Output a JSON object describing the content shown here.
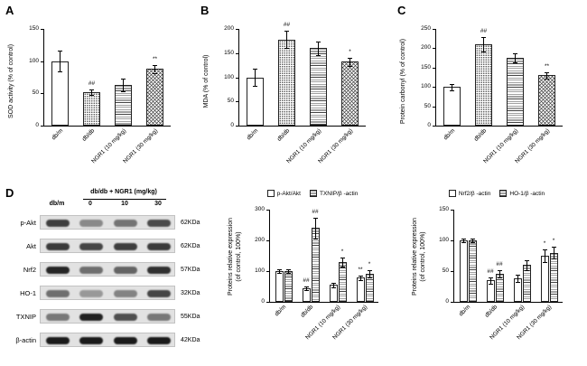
{
  "figure": {
    "panels": {
      "a": "A",
      "b": "B",
      "c": "C",
      "d": "D"
    }
  },
  "blot": {
    "header": {
      "control": "db/m",
      "treatment": "db/db + NGR1 (mg/kg)",
      "doses": [
        "0",
        "10",
        "30"
      ]
    },
    "rows": [
      {
        "label": "p-Akt",
        "kda": "62KDa",
        "bands": [
          0.78,
          0.42,
          0.52,
          0.72
        ]
      },
      {
        "label": "Akt",
        "kda": "62KDa",
        "bands": [
          0.8,
          0.75,
          0.78,
          0.8
        ]
      },
      {
        "label": "Nrf2",
        "kda": "57KDa",
        "bands": [
          0.9,
          0.55,
          0.6,
          0.85
        ]
      },
      {
        "label": "HO-1",
        "kda": "32KDa",
        "bands": [
          0.55,
          0.35,
          0.45,
          0.75
        ]
      },
      {
        "label": "TXNIP",
        "kda": "55KDa",
        "bands": [
          0.5,
          0.92,
          0.7,
          0.5
        ]
      },
      {
        "label": "β-actin",
        "kda": "42KDa",
        "bands": [
          0.95,
          0.95,
          0.95,
          0.95
        ]
      }
    ]
  },
  "chart_data": [
    {
      "id": "A",
      "type": "bar",
      "ylabel": "SOD activity (% of control)",
      "ylim": [
        0,
        150
      ],
      "yticks": [
        0,
        50,
        100,
        150
      ],
      "categories": [
        "db/m",
        "db/db",
        "NGR1 (10 mg/kg)",
        "NGR1 (30 mg/kg)"
      ],
      "patterns": [
        "solid",
        "dots",
        "hlines",
        "cross"
      ],
      "series": [
        {
          "name": "SOD activity",
          "values": [
            100,
            52,
            63,
            88
          ],
          "errors": [
            16,
            4,
            10,
            6
          ],
          "annotations": [
            "",
            "##",
            "",
            "**"
          ]
        }
      ]
    },
    {
      "id": "B",
      "type": "bar",
      "ylabel": "MDA (% of control)",
      "ylim": [
        0,
        200
      ],
      "yticks": [
        0,
        50,
        100,
        150,
        200
      ],
      "categories": [
        "db/m",
        "db/db",
        "NGR1 (10 mg/kg)",
        "NGR1 (30 mg/kg)"
      ],
      "patterns": [
        "solid",
        "dots",
        "hlines",
        "cross"
      ],
      "series": [
        {
          "name": "MDA",
          "values": [
            100,
            178,
            160,
            132
          ],
          "errors": [
            18,
            18,
            14,
            8
          ],
          "annotations": [
            "",
            "##",
            "",
            "*"
          ]
        }
      ]
    },
    {
      "id": "C",
      "type": "bar",
      "ylabel": "Protein carbonyl (% of control)",
      "ylim": [
        0,
        250
      ],
      "yticks": [
        0,
        50,
        100,
        150,
        200,
        250
      ],
      "categories": [
        "db/m",
        "db/db",
        "NGR1 (10 mg/kg)",
        "NGR1 (30 mg/kg)"
      ],
      "patterns": [
        "solid",
        "dots",
        "hlines",
        "cross"
      ],
      "series": [
        {
          "name": "Protein carbonyl",
          "values": [
            100,
            210,
            175,
            130
          ],
          "errors": [
            8,
            18,
            12,
            8
          ],
          "annotations": [
            "",
            "##",
            "",
            "**"
          ]
        }
      ]
    },
    {
      "id": "D-left",
      "type": "bar",
      "ylabel": "Proteins relative expression\n(of control, 100%)",
      "ylim": [
        0,
        300
      ],
      "yticks": [
        0,
        100,
        200,
        300
      ],
      "categories": [
        "db/m",
        "db/db",
        "NGR1 (10 mg/kg)",
        "NGR1 (30 mg/kg)"
      ],
      "series": [
        {
          "name": "p-Akt/Akt",
          "pattern": "solid",
          "values": [
            100,
            45,
            55,
            78
          ],
          "errors": [
            5,
            6,
            8,
            8
          ],
          "annotations": [
            "",
            "##",
            "",
            "**"
          ]
        },
        {
          "name": "TXNIP/β -actin",
          "pattern": "hlines",
          "values": [
            100,
            240,
            130,
            90
          ],
          "errors": [
            5,
            35,
            15,
            12
          ],
          "annotations": [
            "",
            "##",
            "*",
            "*"
          ]
        }
      ]
    },
    {
      "id": "D-right",
      "type": "bar",
      "ylabel": "Proteins relative expression\n(of control, 100%)",
      "ylim": [
        0,
        150
      ],
      "yticks": [
        0,
        50,
        100,
        150
      ],
      "categories": [
        "db/m",
        "db/db",
        "NGR1 (10 mg/kg)",
        "NGR1 (30 mg/kg)"
      ],
      "series": [
        {
          "name": "Nrf2/β -actin",
          "pattern": "solid",
          "values": [
            100,
            35,
            38,
            75
          ],
          "errors": [
            3,
            5,
            6,
            10
          ],
          "annotations": [
            "",
            "##",
            "",
            "*"
          ]
        },
        {
          "name": "HO-1/β -actin",
          "pattern": "hlines",
          "values": [
            100,
            45,
            60,
            80
          ],
          "errors": [
            3,
            6,
            8,
            10
          ],
          "annotations": [
            "",
            "##",
            "",
            "*"
          ]
        }
      ]
    }
  ]
}
